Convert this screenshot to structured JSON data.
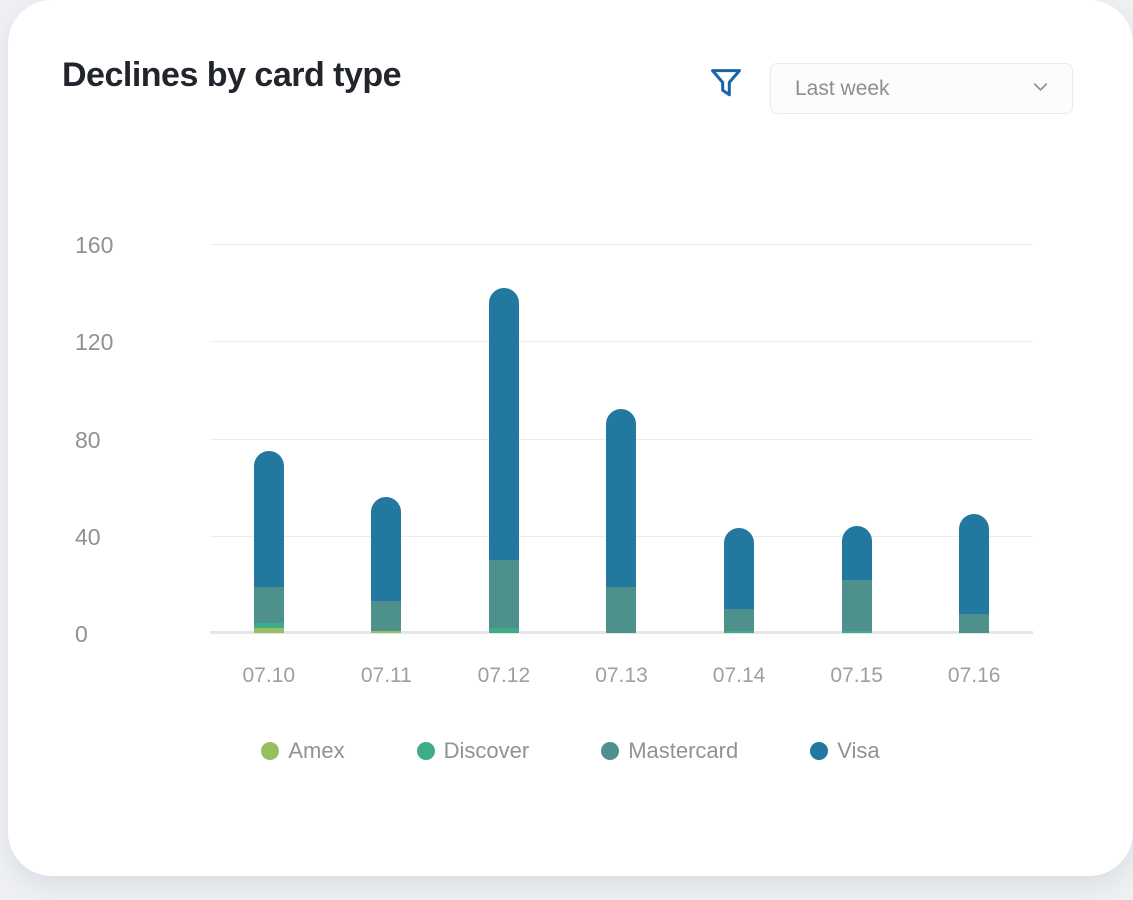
{
  "card": {
    "name": "declines-by-card-type-panel"
  },
  "header": {
    "title": "Declines by card type",
    "filter_icon": "funnel-icon",
    "filter_icon_color": "#1565a8",
    "range_dropdown": {
      "value": "Last week",
      "chevron_icon": "chevron-down-icon"
    }
  },
  "chart_data": {
    "type": "bar",
    "stacked": true,
    "title": "Declines by card type",
    "categories": [
      "07.10",
      "07.11",
      "07.12",
      "07.13",
      "07.14",
      "07.15",
      "07.16"
    ],
    "series": [
      {
        "name": "Amex",
        "color": "#96c05f",
        "values": [
          2,
          1,
          0,
          0,
          0,
          0,
          0
        ]
      },
      {
        "name": "Discover",
        "color": "#3dac88",
        "values": [
          2,
          0,
          2,
          0,
          1,
          1,
          0
        ]
      },
      {
        "name": "Mastercard",
        "color": "#4e908c",
        "values": [
          15,
          12,
          28,
          19,
          9,
          21,
          8
        ]
      },
      {
        "name": "Visa",
        "color": "#2378a0",
        "values": [
          56,
          43,
          112,
          73,
          33,
          22,
          41
        ]
      }
    ],
    "totals": [
      75,
      56,
      142,
      92,
      43,
      44,
      49
    ],
    "y_ticks": [
      0,
      40,
      80,
      120,
      160
    ],
    "ylim": [
      0,
      160
    ],
    "xlabel": "",
    "ylabel": "",
    "grid": true,
    "legend_position": "bottom"
  }
}
